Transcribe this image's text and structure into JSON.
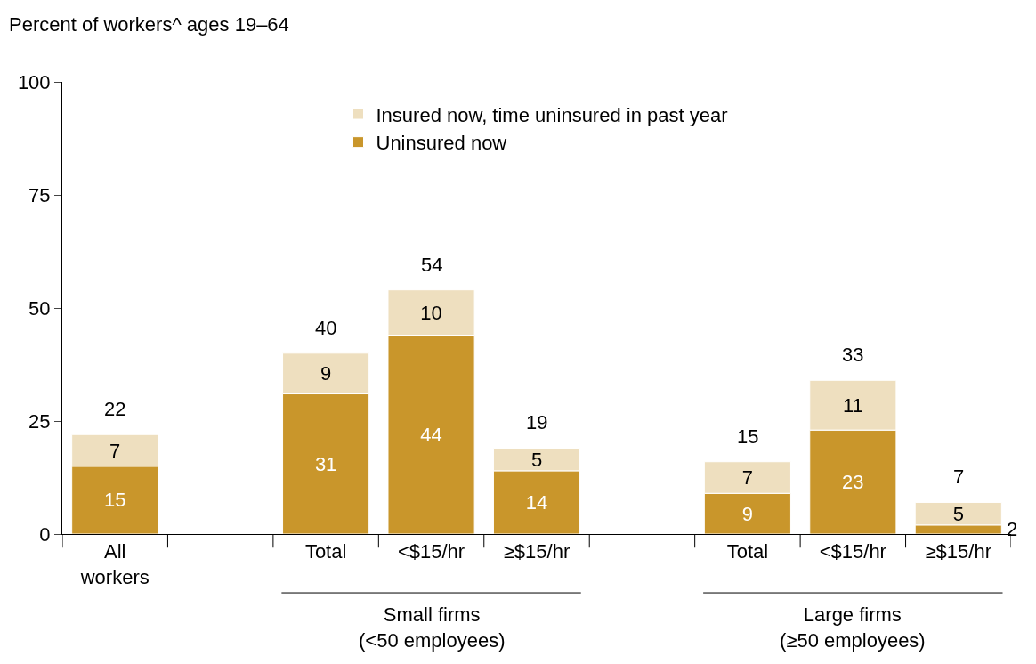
{
  "chart_data": {
    "type": "bar",
    "stacked": true,
    "ylabel": "Percent of workers^ ages 19–64",
    "categories": [
      "All\nworkers",
      null,
      "Total",
      "<$15/hr",
      "≥$15/hr",
      null,
      "Total",
      "<$15/hr",
      "≥$15/hr"
    ],
    "series": [
      {
        "name": "Uninsured now",
        "color": "#c9962b",
        "values": [
          15,
          null,
          31,
          44,
          14,
          null,
          9,
          23,
          2
        ]
      },
      {
        "name": "Insured now, time uninsured in past year",
        "color": "#eedfbf",
        "values": [
          7,
          null,
          9,
          10,
          5,
          null,
          7,
          11,
          5
        ]
      }
    ],
    "totals": [
      "22",
      null,
      "40",
      "54",
      "19",
      null,
      "15",
      "33",
      "7"
    ],
    "data_labels": true,
    "ylim": [
      0,
      100
    ],
    "yticks": [
      0,
      25,
      50,
      75,
      100
    ],
    "legend": "top",
    "annotations": [
      "Small firms\n(<50 employees)",
      "Large firms\n(≥50 employees)"
    ]
  }
}
